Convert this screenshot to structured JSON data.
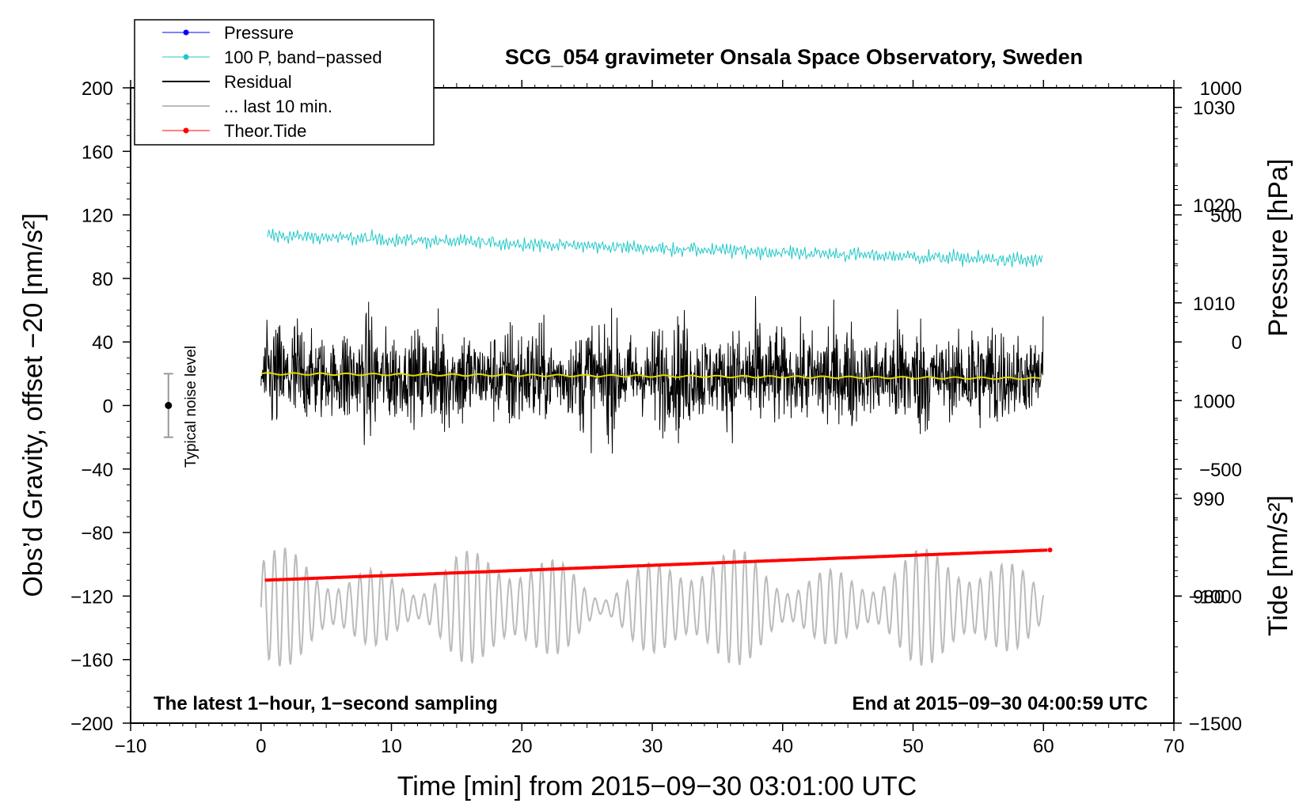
{
  "chart_data": {
    "type": "line",
    "title": "SCG_054 gravimeter Onsala Space Observatory, Sweden",
    "xlabel": "Time [min] from 2015−09−30 03:01:00 UTC",
    "ylabel_left": "Obs’d Gravity, offset −20 [nm/s²]",
    "ylabel_right_pressure": "Pressure [hPa]",
    "ylabel_right_tide": "Tide [nm/s²]",
    "xlim": [
      -10,
      70
    ],
    "ylim": [
      -200,
      200
    ],
    "pressure_ylim": [
      967,
      1032
    ],
    "tide_ylim": [
      -1500,
      1000
    ],
    "x_ticks": [
      -10,
      0,
      10,
      20,
      30,
      40,
      50,
      60,
      70
    ],
    "x_tick_labels": [
      "−10",
      "0",
      "10",
      "20",
      "30",
      "40",
      "50",
      "60",
      "70"
    ],
    "y_ticks": [
      200,
      160,
      120,
      80,
      40,
      0,
      -40,
      -80,
      -120,
      -160,
      -200
    ],
    "y_tick_labels": [
      "200",
      "160",
      "120",
      "80",
      "40",
      "0",
      "−40",
      "−80",
      "−120",
      "−160",
      "−200"
    ],
    "pressure_ticks": [
      1030,
      1020,
      1010,
      1000,
      990,
      980
    ],
    "pressure_tick_labels": [
      "1030",
      "1020",
      "1010",
      "1000",
      "990",
      "980"
    ],
    "tide_ticks": [
      1000,
      500,
      0,
      -500,
      -1000,
      -1500
    ],
    "tide_tick_labels": [
      "1000",
      "500",
      "0",
      "−500",
      "−1000",
      "−1500"
    ],
    "annotation_left": "The latest 1−hour, 1−second sampling",
    "annotation_right": "End at 2015−09−30 04:00:59 UTC",
    "noise_label": "Typical noise level",
    "noise_bar": {
      "x": -7.1,
      "center": 0,
      "low": -20,
      "high": 20
    },
    "legend": [
      {
        "label": "Pressure",
        "color": "#0000ff",
        "marker": true
      },
      {
        "label": "100 P, band−passed",
        "color": "#22c8c8",
        "marker": true
      },
      {
        "label": "Residual",
        "color": "#000000",
        "marker": false
      },
      {
        "label": "... last 10 min.",
        "color": "#bbbbbb",
        "marker": false
      },
      {
        "label": "Theor.Tide",
        "color": "#ff0000",
        "marker": true
      }
    ],
    "series": [
      {
        "name": "100 P, band−passed",
        "color": "#22c8c8",
        "x_range": [
          0.5,
          60
        ],
        "mean_start": 107,
        "mean_end": 91,
        "amplitude": 4
      },
      {
        "name": "Residual",
        "color": "#000000",
        "x_range": [
          0,
          60
        ],
        "center": 18,
        "amplitude": 30,
        "min": -46,
        "max": 87
      },
      {
        "name": "Residual smoothed",
        "color": "#dddd00",
        "x_range": [
          0,
          60
        ],
        "start": 20,
        "end": 17
      },
      {
        "name": "... last 10 min.",
        "color": "#bbbbbb",
        "x_range": [
          0,
          60
        ],
        "center": -127,
        "amplitude": 28,
        "min": -185,
        "max": -55
      },
      {
        "name": "Theor.Tide",
        "color": "#ff0000",
        "x": [
          0.3,
          60.5
        ],
        "y": [
          -110,
          -91
        ]
      }
    ]
  }
}
